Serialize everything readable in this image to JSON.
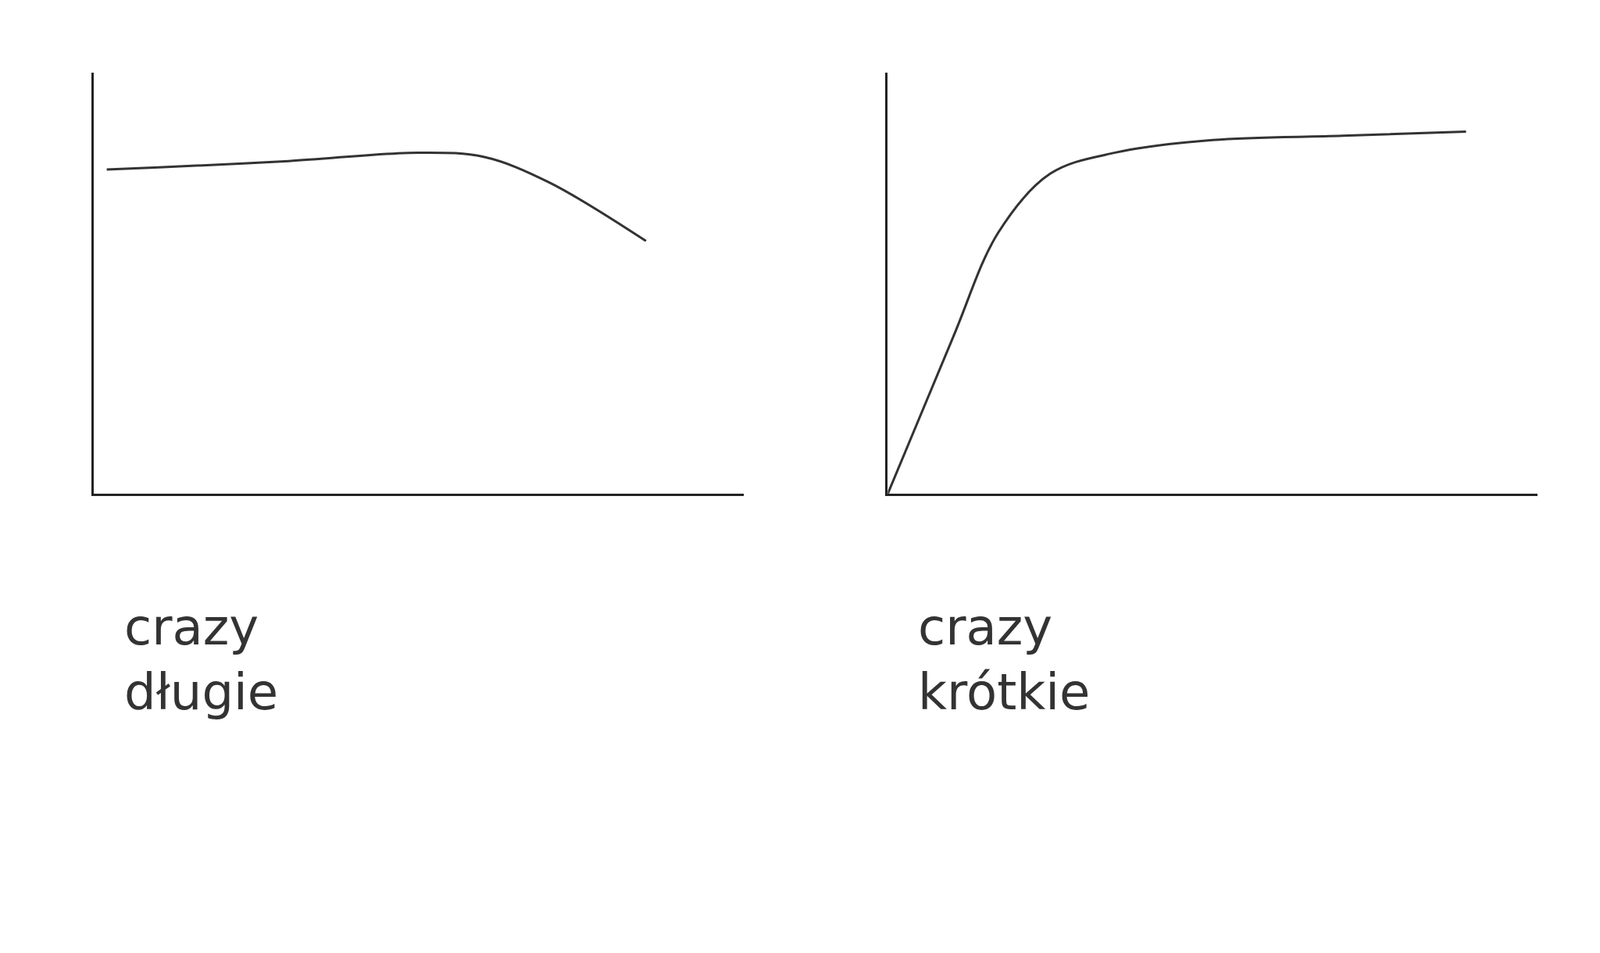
{
  "chart_data": [
    {
      "type": "line",
      "xlabel": "crazy",
      "annotations": [
        "długie"
      ],
      "x": [
        0.2,
        1,
        3,
        5,
        6,
        7,
        8.5
      ],
      "values": [
        7.7,
        7.75,
        7.9,
        8.1,
        8.0,
        7.4,
        6.0
      ],
      "color": "#333333",
      "xlim": [
        0,
        10
      ],
      "ylim": [
        0,
        10
      ],
      "xticks": [],
      "yticks": [],
      "grid": false,
      "tick_labels": false
    },
    {
      "type": "line",
      "xlabel": "crazy",
      "annotations": [
        "krótkie"
      ],
      "x": [
        0,
        1,
        1.7,
        2.5,
        3.5,
        5,
        7,
        8.9
      ],
      "values": [
        0,
        3.7,
        6.2,
        7.6,
        8.1,
        8.4,
        8.5,
        8.6
      ],
      "color": "#333333",
      "xlim": [
        0,
        10
      ],
      "ylim": [
        0,
        10
      ],
      "xticks": [],
      "yticks": [],
      "grid": false,
      "tick_labels": false
    }
  ]
}
